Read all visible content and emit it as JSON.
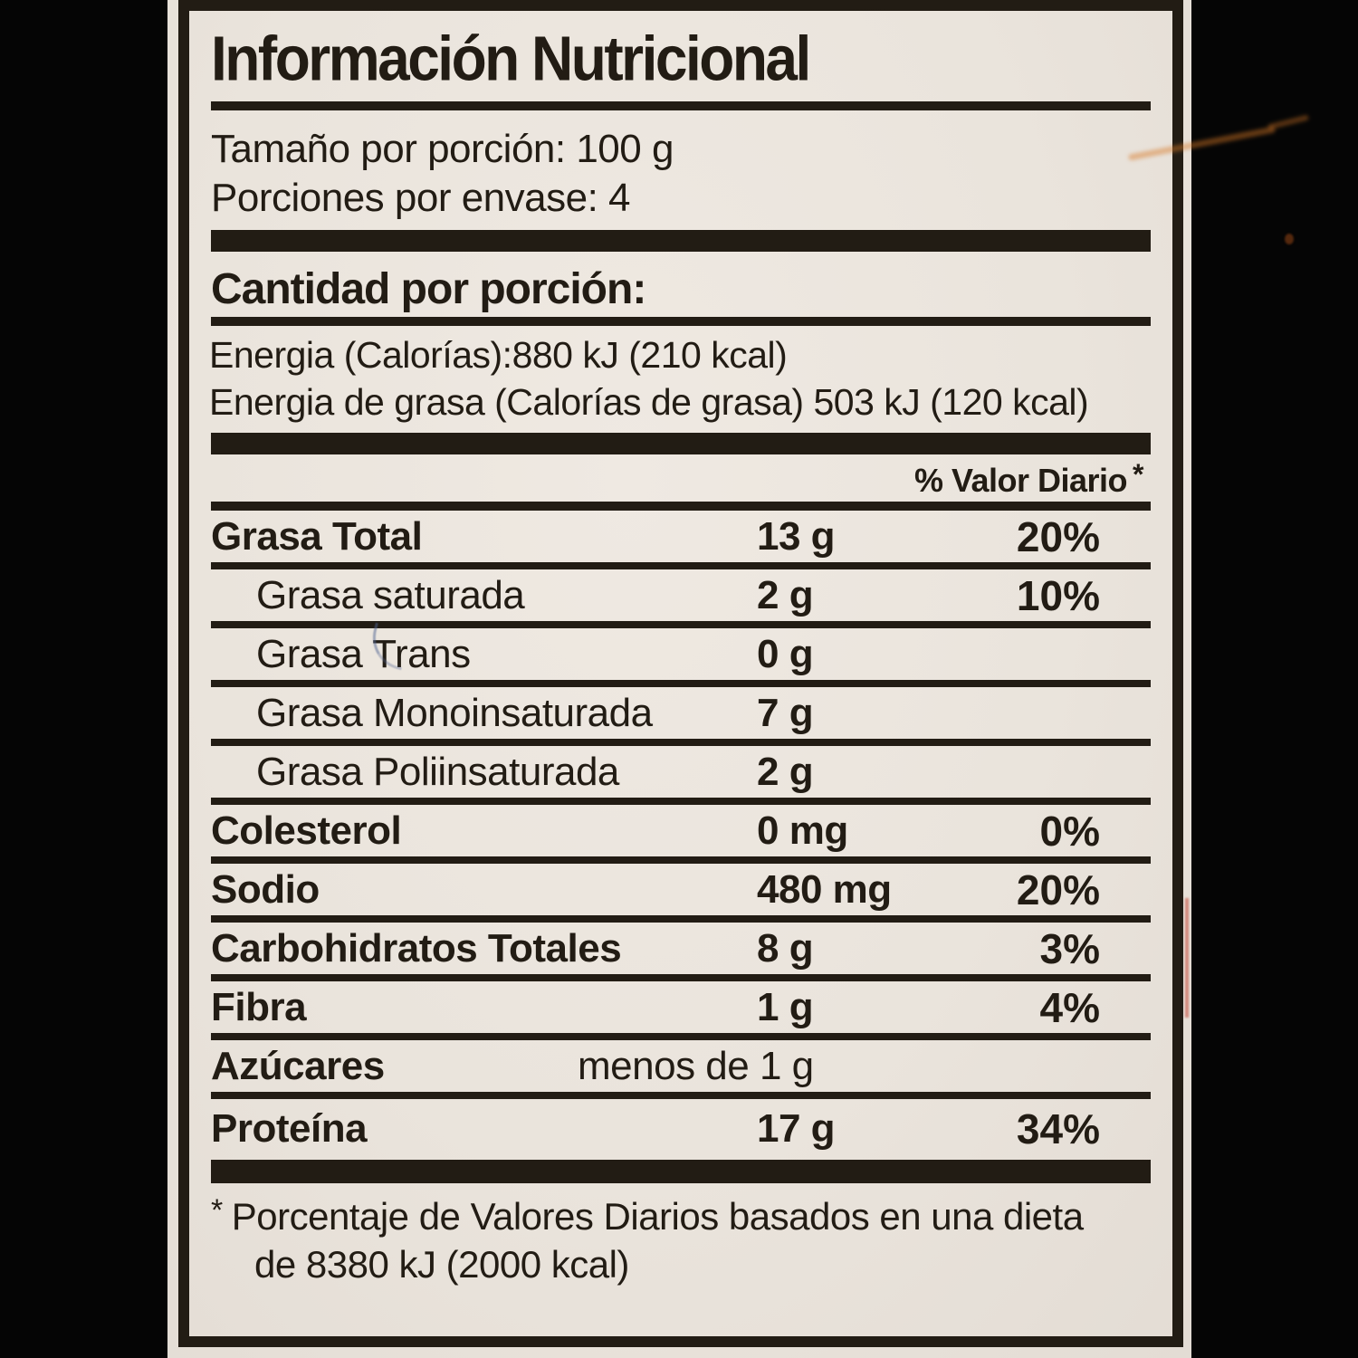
{
  "colors": {
    "background": "#050505",
    "paper": "#eae4dc",
    "ink": "#221c14",
    "stain_orange": "#d87826"
  },
  "label": {
    "title": "Información Nutricional",
    "serving_size_line": "Tamaño por porción: 100 g",
    "servings_per_container_line": "Porciones por envase: 4",
    "amount_per_serving_header": "Cantidad por porción:",
    "energy_line_1": "Energia (Calorías):880 kJ (210 kcal)",
    "energy_line_2": "Energia de grasa (Calorías de grasa) 503 kJ (120 kcal)",
    "daily_value_header": "% Valor Diario",
    "daily_value_header_star": "*",
    "nutrient_rows": [
      {
        "label": "Grasa Total",
        "value": "13 g",
        "daily_value": "20%"
      },
      {
        "label": "Grasa saturada",
        "value": "2 g",
        "daily_value": "10%"
      },
      {
        "label": "Grasa Trans",
        "value": "0 g",
        "daily_value": ""
      },
      {
        "label": "Grasa Monoinsaturada",
        "value": "7 g",
        "daily_value": ""
      },
      {
        "label": "Grasa Poliinsaturada",
        "value": "2 g",
        "daily_value": ""
      },
      {
        "label": "Colesterol",
        "value": "0 mg",
        "daily_value": "0%"
      },
      {
        "label": "Sodio",
        "value": "480 mg",
        "daily_value": "20%"
      },
      {
        "label": "Carbohidratos Totales",
        "value": "8 g",
        "daily_value": "3%"
      },
      {
        "label": "Fibra",
        "value": "1 g",
        "daily_value": "4%"
      },
      {
        "label": "Azúcares",
        "value": "menos de 1 g",
        "daily_value": ""
      },
      {
        "label": "Proteína",
        "value": "17 g",
        "daily_value": "34%"
      }
    ],
    "footnote_star": "*",
    "footnote_line_1": "Porcentaje de Valores Diarios basados en una dieta",
    "footnote_line_2": "de 8380 kJ (2000 kcal)"
  }
}
